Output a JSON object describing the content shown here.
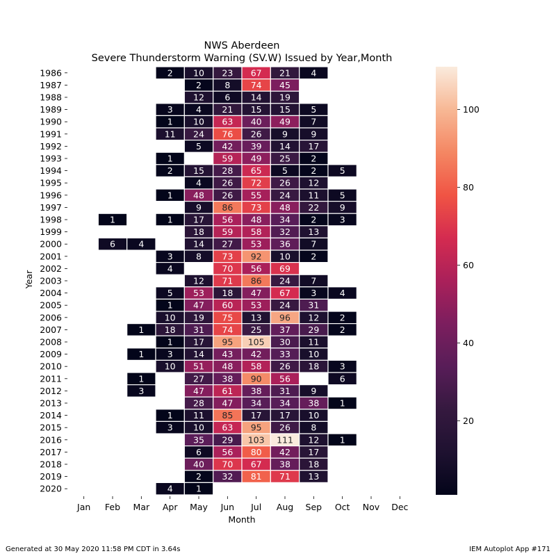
{
  "chart_data": {
    "type": "heatmap",
    "title": "NWS Aberdeen",
    "subtitle": "Severe Thunderstorm Warning (SV.W) Issued by Year,Month",
    "xlabel": "Month",
    "ylabel": "Year",
    "x": [
      "Jan",
      "Feb",
      "Mar",
      "Apr",
      "May",
      "Jun",
      "Jul",
      "Aug",
      "Sep",
      "Oct",
      "Nov",
      "Dec"
    ],
    "y": [
      "1986",
      "1987",
      "1988",
      "1989",
      "1990",
      "1991",
      "1992",
      "1993",
      "1994",
      "1995",
      "1996",
      "1997",
      "1998",
      "1999",
      "2000",
      "2001",
      "2002",
      "2003",
      "2004",
      "2005",
      "2006",
      "2007",
      "2008",
      "2009",
      "2010",
      "2011",
      "2012",
      "2013",
      "2014",
      "2015",
      "2016",
      "2017",
      "2018",
      "2019",
      "2020"
    ],
    "values": [
      [
        null,
        null,
        null,
        2,
        10,
        23,
        67,
        21,
        4,
        null,
        null,
        null
      ],
      [
        null,
        null,
        null,
        null,
        2,
        8,
        74,
        45,
        null,
        null,
        null,
        null
      ],
      [
        null,
        null,
        null,
        null,
        12,
        6,
        14,
        19,
        null,
        null,
        null,
        null
      ],
      [
        null,
        null,
        null,
        3,
        4,
        21,
        15,
        15,
        5,
        null,
        null,
        null
      ],
      [
        null,
        null,
        null,
        1,
        10,
        63,
        40,
        49,
        7,
        null,
        null,
        null
      ],
      [
        null,
        null,
        null,
        11,
        24,
        76,
        26,
        9,
        9,
        null,
        null,
        null
      ],
      [
        null,
        null,
        null,
        null,
        5,
        42,
        39,
        14,
        17,
        null,
        null,
        null
      ],
      [
        null,
        null,
        null,
        1,
        null,
        59,
        49,
        25,
        2,
        null,
        null,
        null
      ],
      [
        null,
        null,
        null,
        2,
        15,
        28,
        65,
        5,
        2,
        5,
        null,
        null
      ],
      [
        null,
        null,
        null,
        null,
        4,
        26,
        72,
        26,
        12,
        null,
        null,
        null
      ],
      [
        null,
        null,
        null,
        1,
        48,
        26,
        55,
        24,
        11,
        5,
        null,
        null
      ],
      [
        null,
        null,
        null,
        null,
        9,
        86,
        73,
        48,
        22,
        9,
        null,
        null
      ],
      [
        null,
        1,
        null,
        1,
        17,
        56,
        48,
        34,
        2,
        3,
        null,
        null
      ],
      [
        null,
        null,
        null,
        null,
        18,
        59,
        58,
        32,
        13,
        null,
        null,
        null
      ],
      [
        null,
        6,
        4,
        null,
        14,
        27,
        53,
        36,
        7,
        null,
        null,
        null
      ],
      [
        null,
        null,
        null,
        3,
        8,
        73,
        92,
        10,
        2,
        null,
        null,
        null
      ],
      [
        null,
        null,
        null,
        4,
        null,
        70,
        56,
        69,
        null,
        null,
        null,
        null
      ],
      [
        null,
        null,
        null,
        null,
        12,
        71,
        86,
        24,
        7,
        null,
        null,
        null
      ],
      [
        null,
        null,
        null,
        5,
        53,
        18,
        47,
        67,
        3,
        4,
        null,
        null
      ],
      [
        null,
        null,
        null,
        1,
        47,
        60,
        53,
        24,
        31,
        null,
        null,
        null
      ],
      [
        null,
        null,
        null,
        10,
        19,
        75,
        13,
        96,
        12,
        2,
        null,
        null
      ],
      [
        null,
        null,
        1,
        18,
        31,
        74,
        25,
        37,
        29,
        2,
        null,
        null
      ],
      [
        null,
        null,
        null,
        1,
        17,
        95,
        105,
        30,
        11,
        null,
        null,
        null
      ],
      [
        null,
        null,
        1,
        3,
        14,
        43,
        42,
        33,
        10,
        null,
        null,
        null
      ],
      [
        null,
        null,
        null,
        10,
        51,
        48,
        58,
        26,
        18,
        3,
        null,
        null
      ],
      [
        null,
        null,
        1,
        null,
        27,
        38,
        90,
        56,
        null,
        6,
        null,
        null
      ],
      [
        null,
        null,
        3,
        null,
        47,
        61,
        38,
        31,
        9,
        null,
        null,
        null
      ],
      [
        null,
        null,
        null,
        null,
        28,
        47,
        34,
        34,
        38,
        1,
        null,
        null
      ],
      [
        null,
        null,
        null,
        1,
        11,
        85,
        17,
        17,
        10,
        null,
        null,
        null
      ],
      [
        null,
        null,
        null,
        3,
        10,
        63,
        95,
        26,
        8,
        null,
        null,
        null
      ],
      [
        null,
        null,
        null,
        null,
        35,
        29,
        103,
        111,
        12,
        1,
        null,
        null
      ],
      [
        null,
        null,
        null,
        null,
        6,
        56,
        80,
        42,
        17,
        null,
        null,
        null
      ],
      [
        null,
        null,
        null,
        null,
        40,
        70,
        67,
        38,
        18,
        null,
        null,
        null
      ],
      [
        null,
        null,
        null,
        null,
        2,
        32,
        81,
        71,
        13,
        null,
        null,
        null
      ],
      [
        null,
        null,
        null,
        4,
        1,
        null,
        null,
        null,
        null,
        null,
        null,
        null
      ]
    ],
    "colorbar": {
      "min": 1,
      "max": 111,
      "ticks": [
        20,
        40,
        60,
        80,
        100
      ]
    },
    "colormap": "rocket",
    "grid": false
  },
  "footer": {
    "left": "Generated at 30 May 2020 11:58 PM CDT in 3.64s",
    "right": "IEM Autoplot App #171"
  }
}
